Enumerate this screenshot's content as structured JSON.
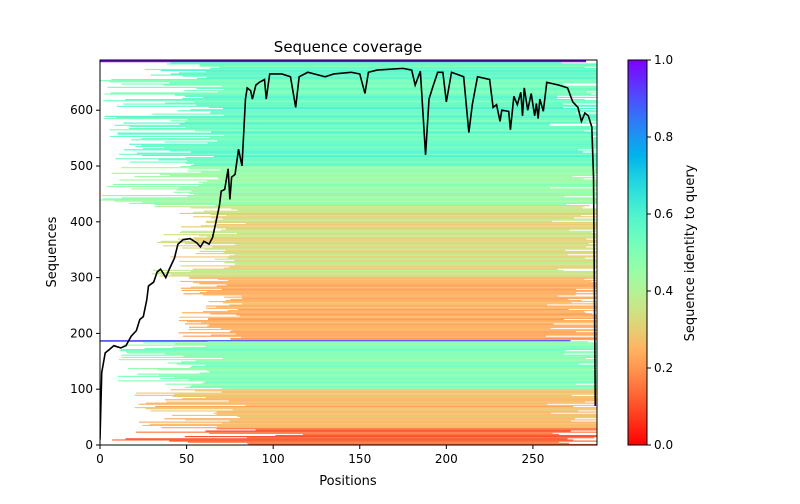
{
  "chart_data": {
    "type": "heatmap",
    "title": "Sequence coverage",
    "xlabel": "Positions",
    "ylabel": "Sequences",
    "xlim": [
      0,
      287
    ],
    "ylim": [
      0,
      690
    ],
    "xticks": [
      "0",
      "50",
      "100",
      "150",
      "200",
      "250"
    ],
    "xtick_values": [
      0,
      50,
      100,
      150,
      200,
      250
    ],
    "yticks": [
      "0",
      "100",
      "200",
      "300",
      "400",
      "500",
      "600"
    ],
    "ytick_values": [
      0,
      100,
      200,
      300,
      400,
      500,
      600
    ],
    "colorbar": {
      "label": "Sequence identity to query",
      "range": [
        0,
        1
      ],
      "ticks": [
        "0.0",
        "0.2",
        "0.4",
        "0.6",
        "0.8",
        "1.0"
      ],
      "tick_values": [
        0,
        0.2,
        0.4,
        0.6,
        0.8,
        1.0
      ],
      "colormap": "rainbow_r"
    },
    "row_blocks": [
      {
        "rows": [
          686,
          690
        ],
        "start": [
          0,
          0
        ],
        "identity": [
          0.9,
          1.0
        ]
      },
      {
        "rows": [
          500,
          686
        ],
        "start": [
          0,
          72
        ],
        "identity": [
          0.5,
          0.6
        ]
      },
      {
        "rows": [
          430,
          500
        ],
        "start": [
          0,
          72
        ],
        "identity": [
          0.42,
          0.5
        ]
      },
      {
        "rows": [
          300,
          430
        ],
        "start": [
          30,
          85
        ],
        "identity": [
          0.28,
          0.38
        ]
      },
      {
        "rows": [
          188,
          300
        ],
        "start": [
          45,
          85
        ],
        "identity": [
          0.2,
          0.27
        ]
      },
      {
        "rows": [
          185,
          188
        ],
        "start": [
          0,
          0
        ],
        "identity": [
          0.9,
          0.9
        ]
      },
      {
        "rows": [
          100,
          185
        ],
        "start": [
          10,
          72
        ],
        "identity": [
          0.45,
          0.55
        ]
      },
      {
        "rows": [
          30,
          100
        ],
        "start": [
          20,
          85
        ],
        "identity": [
          0.22,
          0.3
        ]
      },
      {
        "rows": [
          0,
          30
        ],
        "start": [
          3,
          120
        ],
        "identity": [
          0.08,
          0.15
        ]
      }
    ],
    "coverage_line": {
      "positions": [
        0,
        1,
        3,
        5,
        8,
        12,
        15,
        18,
        21,
        23,
        25,
        27,
        28,
        31,
        33,
        35,
        38,
        40,
        43,
        45,
        48,
        52,
        56,
        58,
        60,
        63,
        65,
        67,
        69,
        70,
        72,
        74,
        75,
        76,
        78,
        80,
        82,
        84,
        85,
        87,
        88,
        90,
        92,
        95,
        96,
        98,
        105,
        110,
        113,
        115,
        120,
        130,
        135,
        145,
        150,
        153,
        155,
        160,
        175,
        180,
        182,
        185,
        188,
        190,
        192,
        195,
        198,
        200,
        203,
        210,
        213,
        215,
        218,
        225,
        227,
        229,
        231,
        232,
        236,
        237,
        239,
        241,
        243,
        244,
        245,
        247,
        249,
        251,
        252,
        253,
        254,
        256,
        258,
        265,
        270,
        273,
        276,
        278,
        280,
        282,
        284,
        285,
        286
      ],
      "counts": [
        10,
        130,
        165,
        170,
        178,
        174,
        178,
        195,
        205,
        225,
        230,
        260,
        285,
        292,
        310,
        315,
        300,
        315,
        335,
        360,
        368,
        370,
        362,
        355,
        365,
        360,
        372,
        400,
        430,
        455,
        458,
        495,
        440,
        480,
        485,
        530,
        500,
        620,
        640,
        635,
        620,
        645,
        650,
        655,
        620,
        665,
        665,
        660,
        605,
        660,
        668,
        660,
        665,
        668,
        665,
        630,
        668,
        672,
        675,
        672,
        645,
        670,
        520,
        620,
        640,
        668,
        668,
        615,
        668,
        660,
        560,
        610,
        660,
        655,
        605,
        610,
        580,
        600,
        598,
        565,
        625,
        610,
        632,
        590,
        640,
        600,
        630,
        590,
        612,
        585,
        620,
        598,
        650,
        645,
        640,
        615,
        605,
        580,
        595,
        590,
        570,
        480,
        70
      ]
    }
  }
}
